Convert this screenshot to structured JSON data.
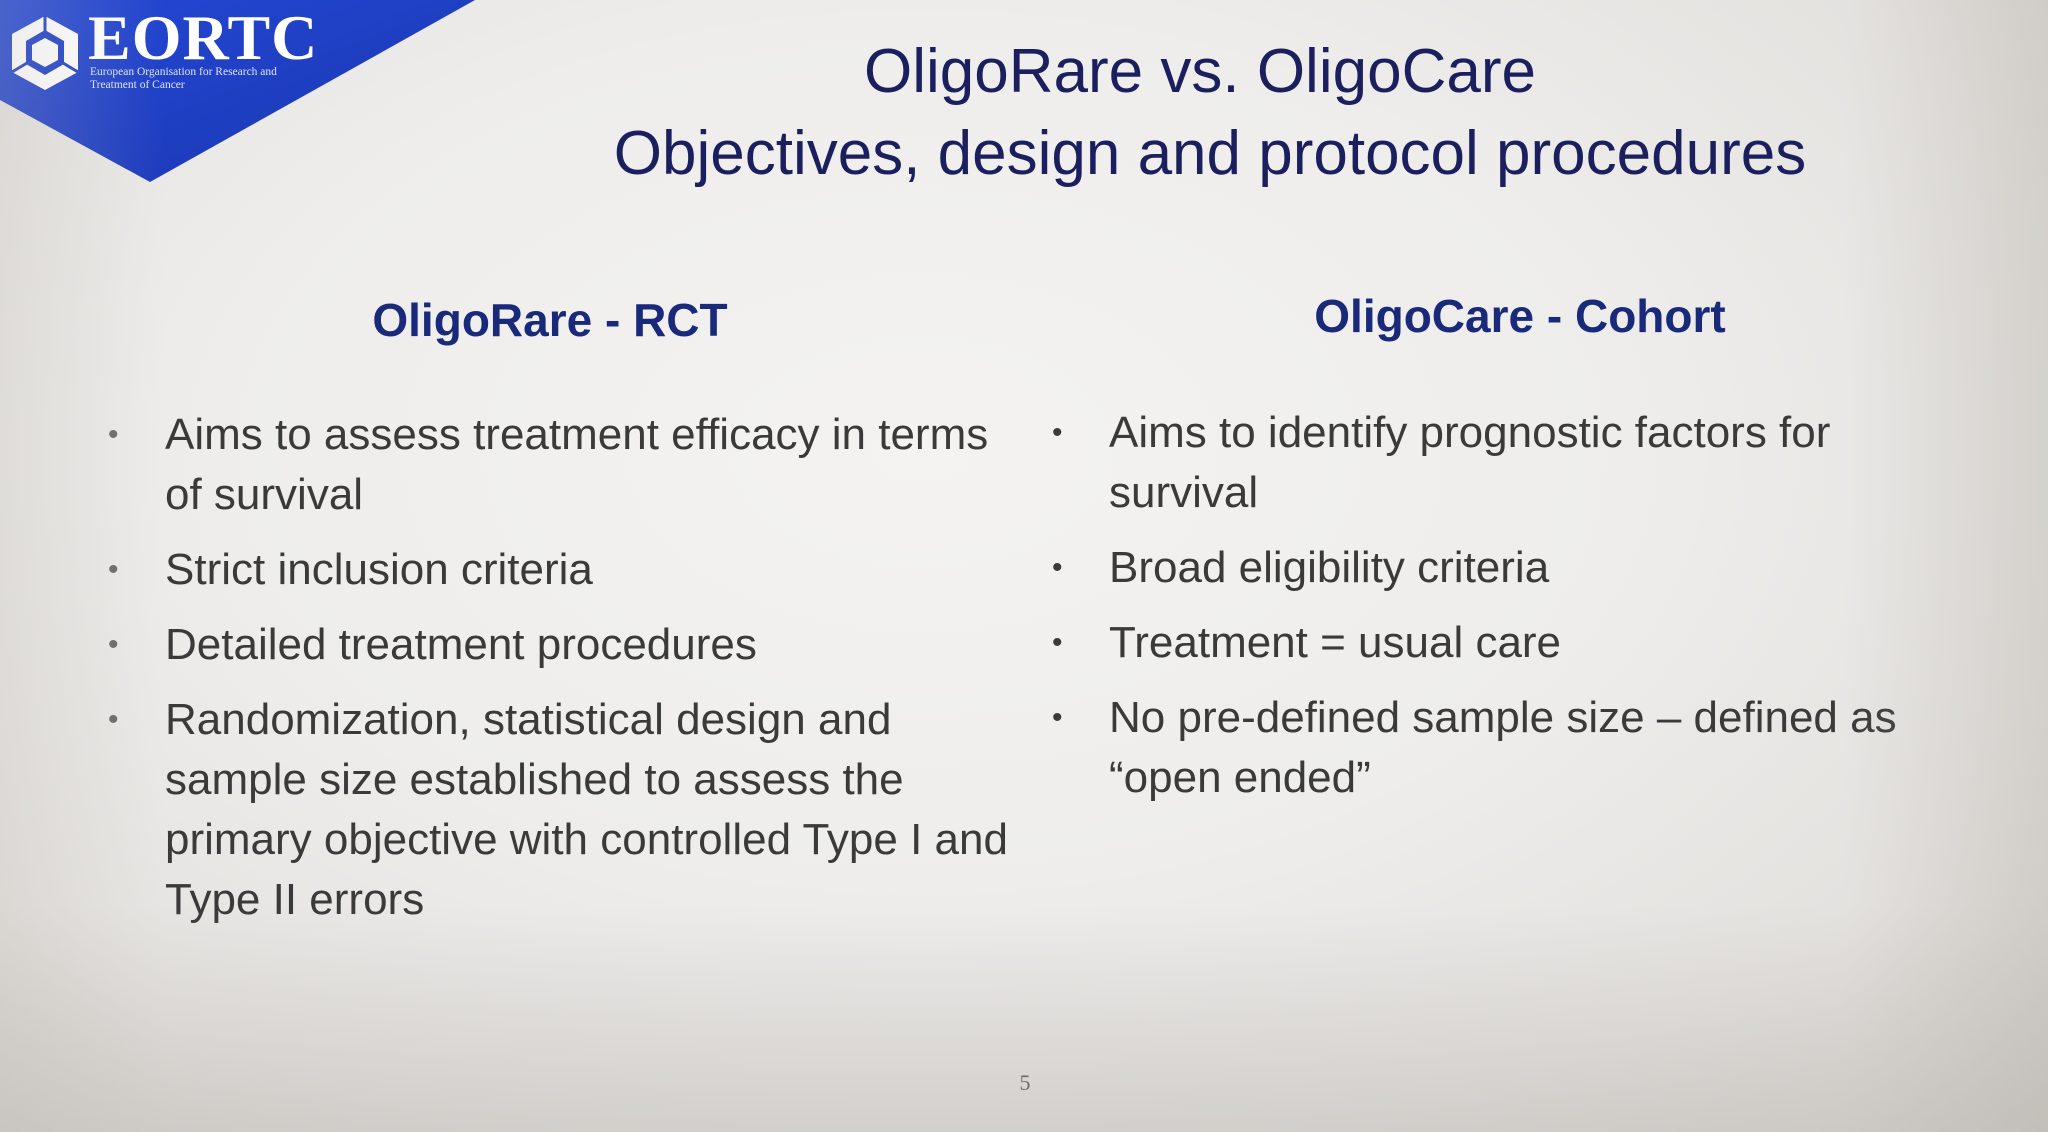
{
  "logo": {
    "name": "EORTC",
    "subtitle": "European Organisation for Research and Treatment of Cancer",
    "banner_color": "#1f3fc8"
  },
  "title": {
    "line1": "OligoRare vs. OligoCare",
    "line2": "Objectives, design and protocol procedures",
    "color": "#1b1f5e"
  },
  "left_column": {
    "heading": "OligoRare - RCT",
    "bullets": [
      "Aims to assess treatment efficacy in terms of survival",
      "Strict inclusion criteria",
      "Detailed treatment procedures",
      "Randomization, statistical design and sample size established  to assess the primary objective with controlled Type I and Type II errors"
    ]
  },
  "right_column": {
    "heading": "OligoCare - Cohort",
    "bullets": [
      "Aims to identify prognostic factors for survival",
      "Broad eligibility criteria",
      "Treatment = usual care",
      "No pre-defined sample size – defined as “open ended”"
    ]
  },
  "bullet_glyph": "•",
  "page_number": "5",
  "heading_color": "#1a2a7a"
}
